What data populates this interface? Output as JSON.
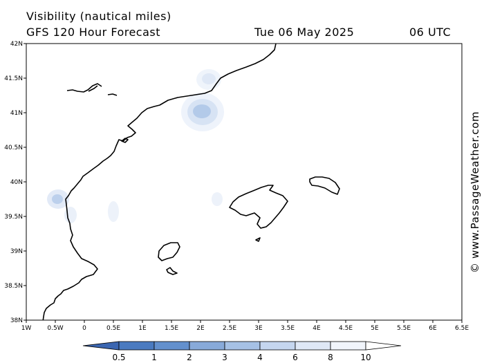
{
  "header": {
    "title_line1": "Visibility (nautical miles)",
    "title_line2": "GFS 120 Hour Forecast",
    "date": "Tue 06 May 2025",
    "time": "06 UTC"
  },
  "credit": "© www.PassageWeather.com",
  "map": {
    "lat_ticks": [
      {
        "v": 42,
        "label": "42N"
      },
      {
        "v": 41.5,
        "label": "41.5N"
      },
      {
        "v": 41,
        "label": "41N"
      },
      {
        "v": 40.5,
        "label": "40.5N"
      },
      {
        "v": 40,
        "label": "40N"
      },
      {
        "v": 39.5,
        "label": "39.5N"
      },
      {
        "v": 39,
        "label": "39N"
      },
      {
        "v": 38.5,
        "label": "38.5N"
      },
      {
        "v": 38,
        "label": "38N"
      }
    ],
    "lon_ticks": [
      {
        "v": -1,
        "label": "1W"
      },
      {
        "v": -0.5,
        "label": "0.5W"
      },
      {
        "v": 0,
        "label": "0"
      },
      {
        "v": 0.5,
        "label": "0.5E"
      },
      {
        "v": 1,
        "label": "1E"
      },
      {
        "v": 1.5,
        "label": "1.5E"
      },
      {
        "v": 2,
        "label": "2E"
      },
      {
        "v": 2.5,
        "label": "2.5E"
      },
      {
        "v": 3,
        "label": "3E"
      },
      {
        "v": 3.5,
        "label": "3.5E"
      },
      {
        "v": 4,
        "label": "4E"
      },
      {
        "v": 4.5,
        "label": "4.5E"
      },
      {
        "v": 5,
        "label": "5E"
      },
      {
        "v": 5.5,
        "label": "5.5E"
      },
      {
        "v": 6,
        "label": "6E"
      },
      {
        "v": 6.5,
        "label": "6.5E"
      }
    ],
    "lat_range": [
      38,
      42
    ],
    "lon_range": [
      -1,
      6.5
    ],
    "low_visibility_patches": [
      {
        "lon": 2.0,
        "lat": 41.0,
        "level": "2-4"
      },
      {
        "lon": 2.1,
        "lat": 41.5,
        "level": "6-10"
      },
      {
        "lon": -0.5,
        "lat": 39.75,
        "level": "3-6"
      },
      {
        "lon": -0.3,
        "lat": 39.55,
        "level": "8-10"
      },
      {
        "lon": 0.5,
        "lat": 39.58,
        "level": "8-10"
      },
      {
        "lon": 2.25,
        "lat": 39.75,
        "level": "8-10"
      }
    ]
  },
  "colorbar": {
    "labels": [
      "0.5",
      "1",
      "2",
      "3",
      "4",
      "6",
      "8",
      "10"
    ],
    "colors": [
      "#3b66b1",
      "#4a7ac0",
      "#6390cd",
      "#88aad9",
      "#a6c1e5",
      "#c5d6ef",
      "#dfe8f6",
      "#f1f5fb",
      "#ffffff"
    ]
  }
}
